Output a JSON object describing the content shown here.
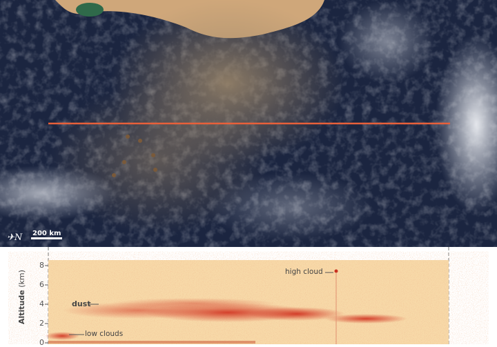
{
  "map": {
    "scale_label": "200 km",
    "north_icon": "north-arrow-icon",
    "transect_color": "#e8603a"
  },
  "profile": {
    "y_axis_label_bold": "Altitude",
    "y_axis_label_unit": "(km)",
    "y_ticks": [
      "0",
      "2",
      "4",
      "6",
      "8"
    ],
    "annotations": {
      "dust": "dust",
      "low_clouds": "low clouds",
      "high_cloud": "high cloud"
    },
    "colors": {
      "background": "#f7d9a8",
      "aerosol": "#d8402a"
    }
  }
}
